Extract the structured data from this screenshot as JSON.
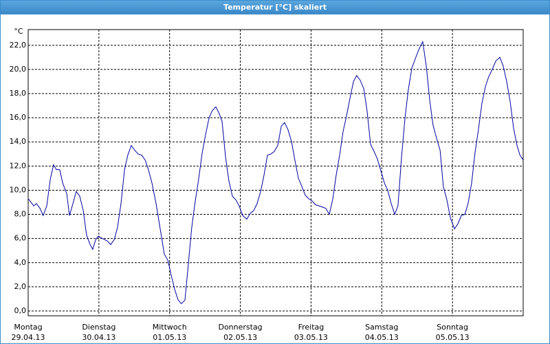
{
  "window_title": "Temperatur [°C] skaliert",
  "chart_data": {
    "type": "line",
    "y_label": "°C",
    "x": [
      0,
      1.9,
      2.8,
      4.0,
      5.1,
      6.3,
      7.5,
      8.6,
      9.6,
      10.7,
      11.7,
      13.1,
      14.0,
      15.2,
      16.3,
      17.5,
      18.7,
      19.8,
      21.0,
      21.9,
      22.9,
      23.8,
      25.2,
      26.8,
      28.0,
      29.2,
      30.3,
      31.5,
      32.7,
      33.8,
      35.0,
      36.2,
      37.3,
      38.5,
      39.7,
      40.8,
      42.0,
      43.4,
      44.8,
      46.2,
      47.4,
      48.5,
      49.7,
      50.9,
      52.0,
      53.2,
      54.4,
      55.5,
      56.7,
      57.9,
      59.0,
      60.2,
      61.4,
      62.5,
      63.7,
      64.9,
      65.8,
      67.0,
      68.1,
      69.3,
      70.5,
      71.6,
      72.8,
      74.2,
      75.4,
      76.5,
      77.7,
      78.9,
      80.0,
      81.2,
      82.4,
      83.5,
      84.7,
      85.9,
      87.0,
      88.2,
      89.4,
      90.5,
      91.7,
      92.9,
      94.0,
      95.2,
      96.4,
      97.5,
      98.7,
      99.9,
      101.0,
      102.2,
      103.4,
      104.5,
      105.7,
      106.9,
      108.0,
      109.2,
      110.4,
      111.5,
      112.7,
      113.9,
      115.0,
      116.2,
      117.4,
      118.5,
      119.7,
      120.9,
      122.0,
      123.2,
      124.4,
      125.5,
      126.7,
      127.9,
      129.0,
      130.2,
      131.4,
      132.5,
      133.9,
      135.1,
      136.3,
      137.4,
      138.6,
      139.8,
      140.9,
      142.1,
      143.3,
      144.7,
      145.8,
      147.0,
      148.2,
      149.3,
      150.5,
      151.7,
      152.8,
      154.0,
      155.2,
      156.3,
      157.5,
      158.7,
      160.1,
      161.2,
      162.4,
      163.6,
      164.7,
      165.9,
      166.9,
      168.0
    ],
    "series": [
      {
        "name": "Temperatur",
        "color": "#0000a0",
        "values": [
          9.3,
          8.7,
          8.9,
          8.5,
          7.9,
          8.7,
          10.9,
          12.1,
          11.7,
          11.7,
          10.6,
          9.7,
          7.9,
          8.9,
          9.9,
          9.5,
          8.3,
          6.3,
          5.5,
          5.1,
          5.9,
          6.2,
          6.0,
          5.8,
          5.5,
          5.9,
          6.9,
          8.9,
          11.7,
          12.9,
          13.7,
          13.3,
          13.0,
          12.9,
          12.5,
          11.7,
          10.6,
          8.9,
          6.8,
          4.7,
          4.2,
          3.0,
          1.8,
          0.9,
          0.6,
          0.9,
          4.0,
          6.9,
          9.1,
          11.0,
          13.0,
          14.6,
          16.0,
          16.6,
          16.9,
          16.3,
          15.7,
          12.7,
          10.8,
          9.5,
          9.2,
          8.7,
          7.9,
          7.6,
          8.1,
          8.3,
          8.9,
          9.9,
          11.2,
          12.9,
          13.0,
          13.2,
          13.7,
          15.3,
          15.6,
          15.0,
          14.0,
          12.5,
          11.0,
          10.3,
          9.6,
          9.3,
          9.1,
          8.8,
          8.7,
          8.6,
          8.5,
          8.0,
          9.3,
          11.2,
          12.9,
          14.9,
          16.1,
          17.6,
          19.0,
          19.5,
          19.1,
          18.4,
          16.6,
          13.8,
          13.2,
          12.6,
          11.6,
          10.6,
          10.0,
          8.9,
          8.0,
          8.7,
          12.7,
          16.0,
          18.3,
          20.1,
          20.9,
          21.6,
          22.3,
          20.3,
          17.4,
          15.4,
          14.3,
          13.3,
          10.3,
          9.2,
          7.7,
          6.8,
          7.2,
          7.9,
          8.0,
          8.9,
          10.6,
          13.2,
          15.0,
          17.2,
          18.6,
          19.4,
          20.0,
          20.7,
          21.0,
          20.3,
          19.0,
          17.3,
          15.2,
          13.7,
          12.9,
          12.5
        ]
      }
    ],
    "xlim": [
      0,
      168
    ],
    "xticks": [
      {
        "value": 0,
        "label": [
          "Montag",
          "29.04.13"
        ]
      },
      {
        "value": 24,
        "label": [
          "Dienstag",
          "30.04.13"
        ]
      },
      {
        "value": 48,
        "label": [
          "Mittwoch",
          "01.05.13"
        ]
      },
      {
        "value": 72,
        "label": [
          "Donnerstag",
          "02.05.13"
        ]
      },
      {
        "value": 96,
        "label": [
          "Freitag",
          "03.05.13"
        ]
      },
      {
        "value": 120,
        "label": [
          "Samstag",
          "04.05.13"
        ]
      },
      {
        "value": 144,
        "label": [
          "Sonntag",
          "05.05.13"
        ]
      }
    ],
    "ylim": [
      -0.4,
      23.3
    ],
    "yticks": [
      {
        "value": 0,
        "label": "0,0"
      },
      {
        "value": 2,
        "label": "2,0"
      },
      {
        "value": 4,
        "label": "4,0"
      },
      {
        "value": 6,
        "label": "6,0"
      },
      {
        "value": 8,
        "label": "8,0"
      },
      {
        "value": 10,
        "label": "10,0"
      },
      {
        "value": 12,
        "label": "12,0"
      },
      {
        "value": 14,
        "label": "14,0"
      },
      {
        "value": 16,
        "label": "16,0"
      },
      {
        "value": 18,
        "label": "18,0"
      },
      {
        "value": 20,
        "label": "20,0"
      },
      {
        "value": 22,
        "label": "22,0"
      }
    ],
    "grid": true
  }
}
